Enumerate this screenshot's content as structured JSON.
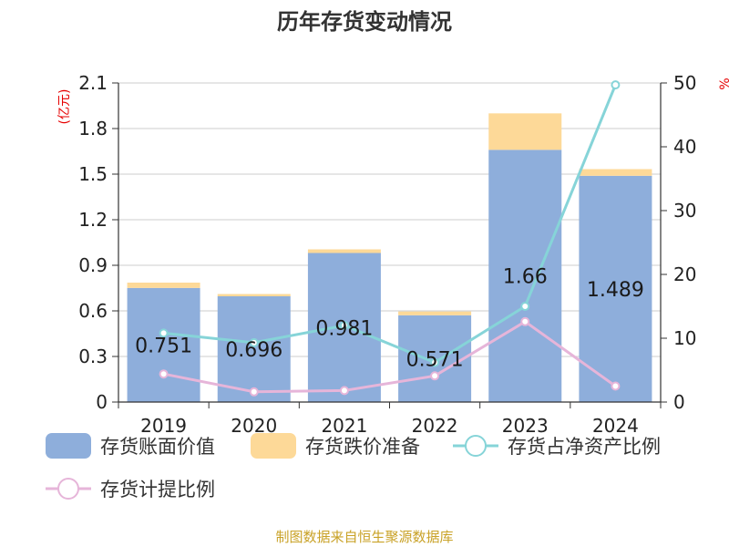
{
  "chart_data": {
    "type": "bar",
    "title": "历年存货变动情况",
    "categories": [
      "2019",
      "2020",
      "2021",
      "2022",
      "2023",
      "2024"
    ],
    "y_left": {
      "unit_label": "(亿元)",
      "ticks": [
        "0",
        "0.3",
        "0.6",
        "0.9",
        "1.2",
        "1.5",
        "1.8",
        "2.1"
      ],
      "ylim": [
        0,
        2.1
      ]
    },
    "y_right": {
      "unit_label": "%",
      "ticks": [
        "0",
        "10",
        "20",
        "30",
        "40",
        "50"
      ],
      "ylim": [
        0,
        50
      ]
    },
    "series": [
      {
        "name": "存货账面价值",
        "kind": "bar",
        "axis": "left",
        "color": "#8eaedb",
        "values": [
          0.751,
          0.696,
          0.981,
          0.571,
          1.66,
          1.489
        ],
        "labels": [
          "0.751",
          "0.696",
          "0.981",
          "0.571",
          "1.66",
          "1.489"
        ]
      },
      {
        "name": "存货跌价准备",
        "kind": "bar",
        "axis": "left",
        "stacked": true,
        "color": "#fdd998",
        "values": [
          0.035,
          0.015,
          0.024,
          0.025,
          0.24,
          0.044
        ]
      },
      {
        "name": "存货占净资产比例",
        "kind": "line",
        "axis": "right",
        "color": "#86d4d8",
        "values": [
          10.8,
          9.3,
          12.0,
          6.2,
          15.0,
          49.7
        ]
      },
      {
        "name": "存货计提比例",
        "kind": "line",
        "axis": "right",
        "color": "#e6b5d9",
        "values": [
          4.4,
          1.6,
          1.8,
          4.1,
          12.6,
          2.5
        ]
      }
    ],
    "grid": true,
    "legend_position": "bottom"
  },
  "footer": {
    "source": "制图数据来自恒生聚源数据库"
  }
}
